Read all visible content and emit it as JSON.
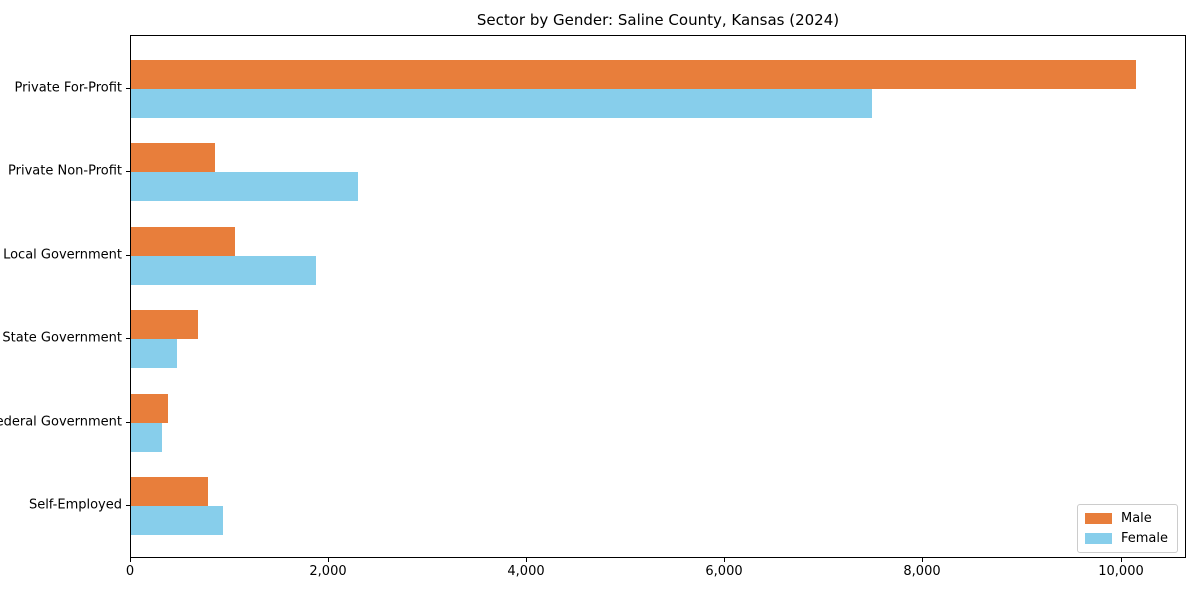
{
  "chart_data": {
    "type": "bar",
    "orientation": "horizontal",
    "title": "Sector by Gender: Saline County, Kansas (2024)",
    "categories": [
      "Private For-Profit",
      "Private Non-Profit",
      "Local Government",
      "State Government",
      "Federal Government",
      "Self-Employed"
    ],
    "series": [
      {
        "name": "Male",
        "color": "#e87e3b",
        "values": [
          10150,
          850,
          1050,
          675,
          375,
          780
        ]
      },
      {
        "name": "Female",
        "color": "#87ceeb",
        "values": [
          7480,
          2290,
          1870,
          465,
          310,
          930
        ]
      }
    ],
    "xlabel": "",
    "ylabel": "",
    "xlim": [
      0,
      10660
    ],
    "x_ticks": [
      0,
      2000,
      4000,
      6000,
      8000,
      10000
    ],
    "x_tick_labels": [
      "0",
      "2,000",
      "4,000",
      "6,000",
      "8,000",
      "10,000"
    ],
    "grid": false,
    "legend": {
      "position": "lower right",
      "entries": [
        "Male",
        "Female"
      ]
    }
  }
}
